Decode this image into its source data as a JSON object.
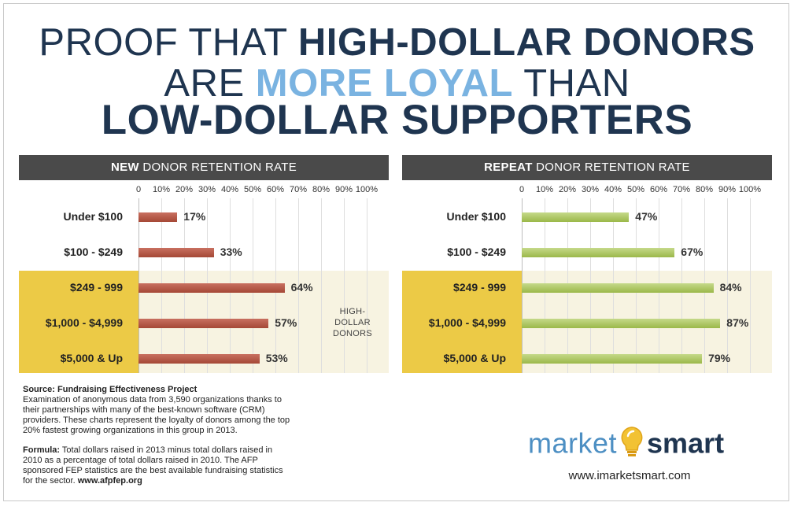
{
  "title": {
    "line1_light": "PROOF THAT",
    "line1_bold": "HIGH-DOLLAR DONORS",
    "line2_light1": "ARE",
    "line2_accent": "MORE LOYAL",
    "line2_light2": "THAN",
    "line3_bold": "LOW-DOLLAR SUPPORTERS"
  },
  "colors": {
    "navy": "#1f3550",
    "accent_blue": "#7ab3e1",
    "header_gray": "#4a4a4a",
    "gold": "#ecca46",
    "cream": "#f7f3e1",
    "red_bar": "#a54836",
    "green_bar": "#9bb84a"
  },
  "high_dollar_label": [
    "HIGH-",
    "DOLLAR",
    "DONORS"
  ],
  "chart_data": [
    {
      "type": "bar",
      "title_bold": "NEW",
      "title_rest": "DONOR RETENTION RATE",
      "categories": [
        "Under $100",
        "$100 - $249",
        "$249 - 999",
        "$1,000 - $4,999",
        "$5,000 & Up"
      ],
      "values": [
        17,
        33,
        64,
        57,
        53
      ],
      "value_labels": [
        "17%",
        "33%",
        "64%",
        "57%",
        "53%"
      ],
      "ticks": [
        "0",
        "10%",
        "20%",
        "30%",
        "40%",
        "50%",
        "60%",
        "70%",
        "80%",
        "90%",
        "100%"
      ],
      "xlim": [
        0,
        100
      ],
      "orientation": "horizontal",
      "grid": true
    },
    {
      "type": "bar",
      "title_bold": "REPEAT",
      "title_rest": "DONOR RETENTION RATE",
      "categories": [
        "Under $100",
        "$100 - $249",
        "$249 - 999",
        "$1,000 - $4,999",
        "$5,000 & Up"
      ],
      "values": [
        47,
        67,
        84,
        87,
        79
      ],
      "value_labels": [
        "47%",
        "67%",
        "84%",
        "87%",
        "79%"
      ],
      "ticks": [
        "0",
        "10%",
        "20%",
        "30%",
        "40%",
        "50%",
        "60%",
        "70%",
        "80%",
        "90%",
        "100%"
      ],
      "xlim": [
        0,
        100
      ],
      "orientation": "horizontal",
      "grid": true
    }
  ],
  "source": {
    "title": "Source: Fundraising Effectiveness Project",
    "lines": [
      "Examination of anonymous data from 3,590 organizations thanks to",
      "their partnerships with many of the best-known software (CRM)",
      "providers. These charts represent the loyalty of donors among the top",
      "20% fastest growing organizations in this group in 2013."
    ],
    "formula_label": "Formula:",
    "formula_lines": [
      " Total dollars raised in 2013 minus total dollars raised in",
      "2010 as a percentage of total dollars raised in 2010. The AFP",
      "sponsored FEP statistics are the best available fundraising statistics",
      "for the sector. "
    ],
    "formula_link": "www.afpfep.org"
  },
  "logo": {
    "part1": "market",
    "part2": "smart",
    "icon": "lightbulb-icon"
  },
  "url": "www.imarketsmart.com"
}
